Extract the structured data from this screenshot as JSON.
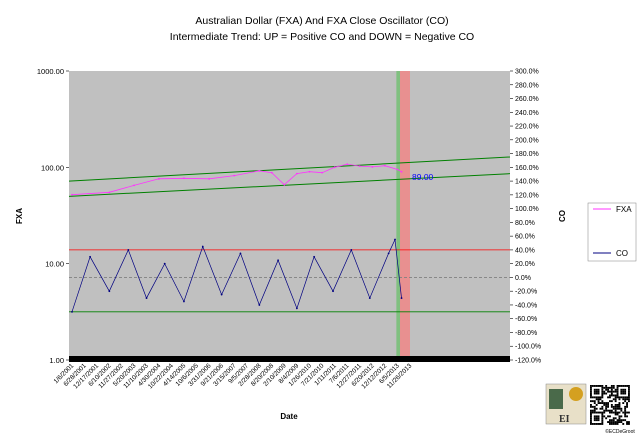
{
  "chart_data": {
    "type": "line",
    "title": "Australian Dollar (FXA) And FXA Close Oscillator (CO)",
    "subtitle": "Intermediate Trend: UP = Positive CO and DOWN = Negative CO",
    "xlabel": "Date",
    "ylabel_left": "FXA",
    "ylabel_right": "CO",
    "left_axis": {
      "scale": "log",
      "ylim": [
        1,
        1000
      ],
      "ticks": [
        "1000.00",
        "100.00",
        "10.00",
        "1.00"
      ]
    },
    "right_axis": {
      "scale": "linear",
      "ylim": [
        -120,
        300
      ],
      "ticks": [
        "300.0%",
        "280.0%",
        "260.0%",
        "240.0%",
        "220.0%",
        "200.0%",
        "180.0%",
        "160.0%",
        "140.0%",
        "120.0%",
        "100.0%",
        "80.0%",
        "60.0%",
        "40.0%",
        "20.0%",
        "0.0%",
        "-20.0%",
        "-40.0%",
        "-60.0%",
        "-80.0%",
        "-100.0%",
        "-120.0%"
      ]
    },
    "x_ticks": [
      "1/6/2001",
      "6/28/2001",
      "12/17/2001",
      "6/10/2002",
      "11/27/2002",
      "5/20/2003",
      "11/10/2003",
      "4/30/2004",
      "10/22/2004",
      "4/14/2005",
      "10/6/2005",
      "3/31/2006",
      "9/21/2006",
      "3/15/2007",
      "9/5/2007",
      "2/28/2008",
      "8/20/2008",
      "2/10/2009",
      "8/4/2009",
      "1/26/2010",
      "7/21/2010",
      "1/11/2011",
      "7/6/2011",
      "12/27/2011",
      "6/20/2012",
      "12/12/2012",
      "6/5/2013",
      "11/26/2013"
    ],
    "series": [
      {
        "name": "FXA",
        "axis": "left",
        "color": "#ff33ff",
        "x": [
          "2001-01-06",
          "2002-06-10",
          "2003-05-20",
          "2004-04-30",
          "2005-04-14",
          "2006-03-31",
          "2007-03-15",
          "2008-02-28",
          "2008-08-20",
          "2009-02-10",
          "2009-08-04",
          "2010-01-26",
          "2010-07-21",
          "2011-01-11",
          "2011-07-06",
          "2011-12-27",
          "2012-06-20",
          "2012-12-12",
          "2013-06-05",
          "2013-07-31"
        ],
        "values": [
          52,
          55,
          65,
          76,
          77,
          76,
          82,
          92,
          88,
          66,
          86,
          90,
          88,
          100,
          108,
          103,
          101,
          104,
          95,
          90
        ]
      },
      {
        "name": "CO",
        "axis": "right",
        "color": "#000080",
        "x": [
          "2001-01-06",
          "2001-09-15",
          "2002-06-10",
          "2003-03-01",
          "2003-11-10",
          "2004-07-20",
          "2005-04-14",
          "2006-01-01",
          "2006-09-21",
          "2007-06-10",
          "2008-02-28",
          "2008-11-15",
          "2009-08-04",
          "2010-04-01",
          "2010-12-20",
          "2011-09-01",
          "2012-05-15",
          "2013-02-01",
          "2013-05-01",
          "2013-07-31"
        ],
        "values": [
          -50,
          30,
          -20,
          40,
          -30,
          20,
          -35,
          45,
          -25,
          35,
          -40,
          25,
          -45,
          30,
          -20,
          40,
          -30,
          35,
          55,
          -30
        ]
      }
    ],
    "trend_channel": {
      "color": "#008000",
      "upper": {
        "x": [
          "2001-01-06",
          "2013-11-26"
        ],
        "values": [
          72,
          128
        ]
      },
      "lower": {
        "x": [
          "2001-01-06",
          "2013-11-26"
        ],
        "values": [
          50,
          86
        ]
      }
    },
    "reference_lines": [
      {
        "axis": "right",
        "value": 40,
        "color": "#ff0000"
      },
      {
        "axis": "right",
        "value": 0,
        "color": "#808080",
        "style": "dashed"
      },
      {
        "axis": "right",
        "value": -50,
        "color": "#008000"
      }
    ],
    "shaded_bands": [
      {
        "color": "#80c080",
        "x": [
          "2013-05-20",
          "2013-07-10"
        ]
      },
      {
        "color": "#e89090",
        "x": [
          "2013-07-10",
          "2013-11-26"
        ]
      }
    ],
    "annotation": {
      "text": "89.00",
      "color": "#0000ff"
    },
    "legend_placement": "right",
    "grid": false
  },
  "credit": "©ECDeGroot"
}
